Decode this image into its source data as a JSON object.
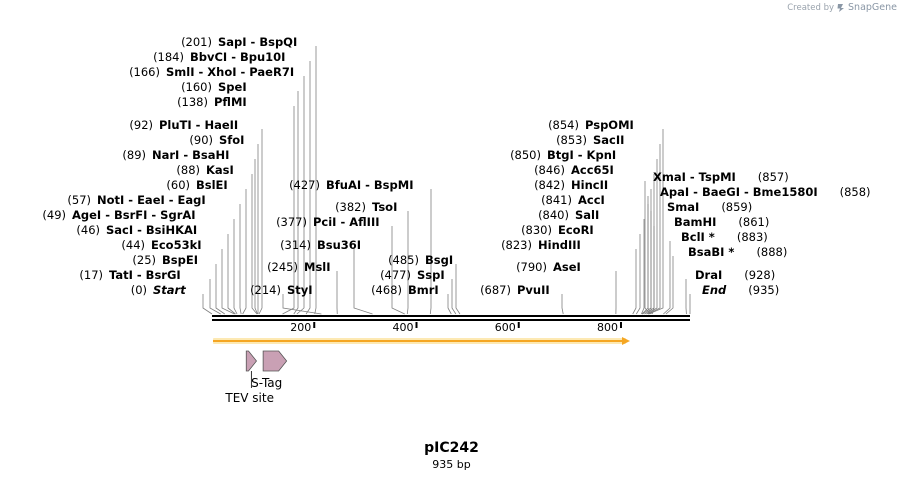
{
  "credit": {
    "prefix": "Created by",
    "brand": "SnapGene"
  },
  "plasmid": {
    "name": "pIC242",
    "size_label": "935 bp"
  },
  "map": {
    "total_bp": 935,
    "ticks": [
      {
        "pos": 200,
        "label": "200"
      },
      {
        "pos": 400,
        "label": "400"
      },
      {
        "pos": 600,
        "label": "600"
      },
      {
        "pos": 800,
        "label": "800"
      }
    ],
    "arrow_color": "#f5a623",
    "feature_color": "#c9a0b4"
  },
  "sites": [
    {
      "pos": 201,
      "label": "SapI  - BspQI"
    },
    {
      "pos": 184,
      "label": "BbvCI  - Bpu10I"
    },
    {
      "pos": 166,
      "label": "SmlI  - XhoI  - PaeR7I"
    },
    {
      "pos": 160,
      "label": "SpeI"
    },
    {
      "pos": 138,
      "label": "PflMI"
    },
    {
      "pos": 92,
      "label": "PluTI  - HaeII"
    },
    {
      "pos": 90,
      "label": "SfoI"
    },
    {
      "pos": 89,
      "label": "NarI  - BsaHI"
    },
    {
      "pos": 88,
      "label": "KasI"
    },
    {
      "pos": 60,
      "label": "BslEI"
    },
    {
      "pos": 57,
      "label": "NotI  - EaeI  - EagI"
    },
    {
      "pos": 49,
      "label": "AgeI  - BsrFI  - SgrAI"
    },
    {
      "pos": 46,
      "label": "SacI  - BsiHKAI"
    },
    {
      "pos": 44,
      "label": "Eco53kI"
    },
    {
      "pos": 25,
      "label": "BspEI"
    },
    {
      "pos": 17,
      "label": "TatI  - BsrGI"
    },
    {
      "pos": 0,
      "label": "Start"
    },
    {
      "pos": 214,
      "label": "StyI"
    },
    {
      "pos": 245,
      "label": "MslI"
    },
    {
      "pos": 314,
      "label": "Bsu36I"
    },
    {
      "pos": 377,
      "label": "PciI  - AflIII"
    },
    {
      "pos": 382,
      "label": "TsoI"
    },
    {
      "pos": 427,
      "label": "BfuAI  - BspMI"
    },
    {
      "pos": 468,
      "label": "BmrI"
    },
    {
      "pos": 477,
      "label": "SspI"
    },
    {
      "pos": 485,
      "label": "BsgI"
    },
    {
      "pos": 687,
      "label": "PvuII"
    },
    {
      "pos": 790,
      "label": "AseI"
    },
    {
      "pos": 823,
      "label": "HindIII"
    },
    {
      "pos": 830,
      "label": "EcoRI"
    },
    {
      "pos": 840,
      "label": "SalI"
    },
    {
      "pos": 841,
      "label": "AccI"
    },
    {
      "pos": 842,
      "label": "HincII"
    },
    {
      "pos": 846,
      "label": "Acc65I"
    },
    {
      "pos": 850,
      "label": "BtgI  - KpnI"
    },
    {
      "pos": 853,
      "label": "SacII"
    },
    {
      "pos": 854,
      "label": "PspOMI"
    },
    {
      "pos": 857,
      "label": "XmaI  - TspMI"
    },
    {
      "pos": 858,
      "label": "ApaI  - BaeGI  - Bme1580I"
    },
    {
      "pos": 859,
      "label": "SmaI"
    },
    {
      "pos": 861,
      "label": "BamHI"
    },
    {
      "pos": 883,
      "label": "BclI *"
    },
    {
      "pos": 888,
      "label": "BsaBI *"
    },
    {
      "pos": 928,
      "label": "DraI"
    },
    {
      "pos": 935,
      "label": "End"
    }
  ],
  "features": [
    {
      "name": "TEV site",
      "start": 67,
      "end": 87
    },
    {
      "name": "S-Tag",
      "start": 100,
      "end": 146
    }
  ]
}
